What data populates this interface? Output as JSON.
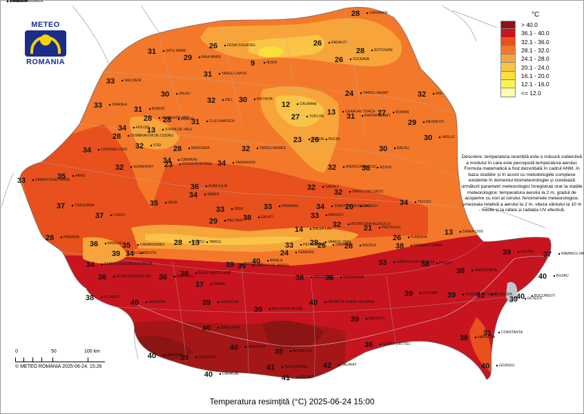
{
  "logo": {
    "top": "METEO",
    "bottom": "ROMANIA"
  },
  "legend": {
    "unit": "°C",
    "classes": [
      {
        "label": "> 40.0",
        "color": "#8b1414"
      },
      {
        "label": "36.1 - 40.0",
        "color": "#c8141e"
      },
      {
        "label": "32.1 - 36.0",
        "color": "#e8501e"
      },
      {
        "label": "28.1 - 32.0",
        "color": "#f4782a"
      },
      {
        "label": "24.1 - 28.0",
        "color": "#f7a53a"
      },
      {
        "label": "20.1 - 24.0",
        "color": "#f9c448"
      },
      {
        "label": "16.1 - 20.0",
        "color": "#fbdf3c"
      },
      {
        "label": "12.1 - 16.0",
        "color": "#fbf250"
      },
      {
        "label": "<= 12.0",
        "color": "#fdfcb0"
      }
    ]
  },
  "description": "Descriere: temperatura resimțită este o măsură subiectivă a modului în care este percepută temperatura aerului. Formula matematică a fost dezvoltată în cadrul ANM, în baza studiilor și în acord cu metodologiile complexe existente în domeniul biometeorologiei și corelează următorii parametri meteorologici înregistrați orar la stațiile meteorologice: temperatura aerului la 2 m, gradul de acoperire cu nori al cerului, fenomenele meteorologice, umezeala relativă a aerului la 2 m, viteza vântului la 10 m - medie și la rafala și radiația UV efectivă.",
  "scale": {
    "ticks": [
      "0",
      "50",
      "100 km"
    ]
  },
  "copyright": "© METEO ROMANIA 2025-06-24, 15:26",
  "title": "Temperatura resimțită (°C) 2025-06-24 15:00",
  "stations": [
    {
      "v": "28",
      "n": "DARABANI"
    },
    {
      "v": "26",
      "n": "RADAUTI"
    },
    {
      "v": "28",
      "n": "BOTOSANI"
    },
    {
      "v": "26",
      "n": "SUCEAVA"
    },
    {
      "v": "26",
      "n": "OCNA SUGATAG"
    },
    {
      "v": "31",
      "n": "SATU MARE"
    },
    {
      "v": "29",
      "n": "BAIA MARE"
    },
    {
      "v": "9",
      "n": "IEZER"
    },
    {
      "v": "31",
      "n": "TARGU LAPUS"
    },
    {
      "v": "33",
      "n": "SACUIENI"
    },
    {
      "v": "30",
      "n": "ZALAU"
    },
    {
      "v": "32",
      "n": "DEJ"
    },
    {
      "v": "30",
      "n": "BISTRITA"
    },
    {
      "v": "12",
      "n": "CALIMANI"
    },
    {
      "v": "24",
      "n": "TARGU NEAMT"
    },
    {
      "v": "32",
      "n": "IASI"
    },
    {
      "v": "33",
      "n": "ORADEA"
    },
    {
      "v": "31",
      "n": "BOROD"
    },
    {
      "v": "28",
      "n": "VLADEASA 1800"
    },
    {
      "v": "28",
      "n": "HUEDIN"
    },
    {
      "v": "31",
      "n": "CLUJ-NAPOCA"
    },
    {
      "v": "27",
      "n": "TOPLITA"
    },
    {
      "v": "13",
      "n": "CEAHLAU TOACA"
    },
    {
      "v": "31",
      "n": "PIATRA NEAMT"
    },
    {
      "v": "27",
      "n": "ROMAN"
    },
    {
      "v": "29",
      "n": "NEGRESTI"
    },
    {
      "v": "34",
      "n": "HOLOD"
    },
    {
      "v": "34",
      "n": "CHISINEU CRIS"
    },
    {
      "v": "28",
      "n": "DUMBRAVITA DE CODRU"
    },
    {
      "v": "13",
      "n": "STANA DE VALE"
    },
    {
      "v": "32",
      "n": "STEI"
    },
    {
      "v": "23",
      "n": "JOSENI"
    },
    {
      "v": "26",
      "n": "BUCIN"
    },
    {
      "v": "30",
      "n": "VASLUI"
    },
    {
      "v": "28",
      "n": "BAISOARA"
    },
    {
      "v": "32",
      "n": "TARGU MURES"
    },
    {
      "v": "30",
      "n": "BACAU"
    },
    {
      "v": "33",
      "n": "SANNICOLAU MARE"
    },
    {
      "v": "35",
      "n": "ARAD"
    },
    {
      "v": "32",
      "n": "GURAHONT"
    },
    {
      "v": "34",
      "n": "CAMPENI"
    },
    {
      "v": "23",
      "n": "ROSIA MONTANA"
    },
    {
      "v": "34",
      "n": "TARNAVENI"
    },
    {
      "v": "32",
      "n": "MIERCUREA CIUC"
    },
    {
      "v": "36",
      "n": "ADJUD"
    },
    {
      "v": "36",
      "n": "ALBA IULIA"
    },
    {
      "v": "34",
      "n": "SEBES"
    },
    {
      "v": "32",
      "n": "SARALT"
    },
    {
      "v": "32",
      "n": "TARGU SECUIESC"
    },
    {
      "v": "37",
      "n": "TIMISOARA"
    },
    {
      "v": "35",
      "n": "DEVA"
    },
    {
      "v": "37",
      "n": "LUGOJ"
    },
    {
      "v": "33",
      "n": "SIBIU"
    },
    {
      "v": "33",
      "n": "FAGARAS"
    },
    {
      "v": "34",
      "n": "SFANTU GHEORGHE"
    },
    {
      "v": "20",
      "n": "LACAUTI"
    },
    {
      "v": "34",
      "n": "TECUCI"
    },
    {
      "v": "29",
      "n": "PALTINIS"
    },
    {
      "v": "33",
      "n": "BRASOV"
    },
    {
      "v": "32",
      "n": "INTORSURA BUZAULUI"
    },
    {
      "v": "21",
      "n": "PENTELEU"
    },
    {
      "v": "28",
      "n": "BISOCA"
    },
    {
      "v": "38",
      "n": "GALATI"
    },
    {
      "v": "14",
      "n": "BALEA LAC"
    },
    {
      "v": "28",
      "n": "VARFUL OMU"
    },
    {
      "v": "28",
      "n": "PREDEAL"
    },
    {
      "v": "36",
      "n": "BANLOC"
    },
    {
      "v": "35",
      "n": "CARANSEBES"
    },
    {
      "v": "34",
      "n": "RESITA"
    },
    {
      "v": "28",
      "n": "CUNTU"
    },
    {
      "v": "13",
      "n": "TARCU"
    },
    {
      "v": "33",
      "n": "PETROSANI"
    },
    {
      "v": "26",
      "n": "PARANG"
    },
    {
      "v": "26",
      "n": "FUNDATA"
    },
    {
      "v": "13",
      "n": "SINAIA 1500"
    },
    {
      "v": "38",
      "n": "RAMNICU SARAT"
    },
    {
      "v": "39",
      "n": "TULCEA"
    },
    {
      "v": "40",
      "n": "BRAILA"
    },
    {
      "v": "24",
      "n": "SEMENIC"
    },
    {
      "v": "36",
      "n": "CURTEA DE ARGES"
    },
    {
      "v": "33",
      "n": "CAMPULUNG MUSCEL"
    },
    {
      "v": "37",
      "n": "RAMNICU VALCEA"
    },
    {
      "v": "40",
      "n": "BUZAU"
    },
    {
      "v": "39",
      "n": "SULINA"
    },
    {
      "v": "34",
      "n": "SFANTU GHEORGHE DELTA"
    },
    {
      "v": "36",
      "n": "OCNA SUGATAG (W)"
    },
    {
      "v": "36",
      "n": "BOZOVICI"
    },
    {
      "v": "38",
      "n": "BAILE HERCULANE"
    },
    {
      "v": "37",
      "n": "PARAU"
    },
    {
      "v": "39",
      "n": "TARGU JIU"
    },
    {
      "v": "38",
      "n": "POLOVRAGI"
    },
    {
      "v": "36",
      "n": "DRAGASANI"
    },
    {
      "v": "38",
      "n": "PITESTI"
    },
    {
      "v": "38",
      "n": "TARGOVISTE"
    },
    {
      "v": "38",
      "n": "PLOIESTI"
    },
    {
      "v": "40",
      "n": "URZICENI"
    },
    {
      "v": "39",
      "n": "GORGOVA"
    },
    {
      "v": "39",
      "n": "MOLDOVA VECHE"
    },
    {
      "v": "40",
      "n": "DROBETA TURNU SEVERIN"
    },
    {
      "v": "39",
      "n": "BAILESTI"
    },
    {
      "v": "39",
      "n": "SLATINA"
    },
    {
      "v": "39",
      "n": "ROSIORI DE VEDE"
    },
    {
      "v": "40",
      "n": "BUCURESTI"
    },
    {
      "v": "41",
      "n": "SLOBOZIA"
    },
    {
      "v": "39",
      "n": "FETESTI"
    },
    {
      "v": "40",
      "n": "JURILOVCA"
    },
    {
      "v": "36",
      "n": "GURA PORTITEI"
    },
    {
      "v": "38",
      "n": "HARSOVA"
    },
    {
      "v": "31",
      "n": "CONSTANTA"
    },
    {
      "v": "40",
      "n": "CRAIOVA"
    },
    {
      "v": "39",
      "n": "CALARASI"
    },
    {
      "v": "40",
      "n": "MEDGIDIA"
    },
    {
      "v": "35",
      "n": "ADAMCLISI"
    },
    {
      "v": "42",
      "n": "CALAFAT"
    },
    {
      "v": "41",
      "n": "BECHET"
    },
    {
      "v": "40",
      "n": "CARACAL"
    },
    {
      "v": "41",
      "n": "ALEXANDRIA"
    },
    {
      "v": "40",
      "n": "GIURGIU"
    },
    {
      "v": "39",
      "n": "OLTENITA"
    },
    {
      "v": "41",
      "n": "TURNU MAGURELE"
    },
    {
      "v": "40",
      "n": "ZIMNICEA"
    },
    {
      "v": "31",
      "n": "MANGALIA"
    }
  ]
}
